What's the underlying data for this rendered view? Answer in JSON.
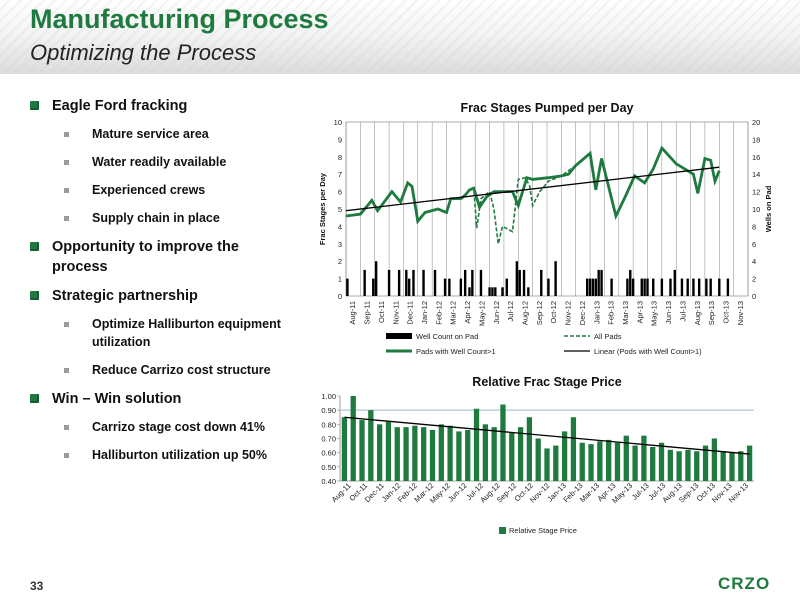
{
  "header": {
    "title": "Manufacturing Process",
    "subtitle": "Optimizing the Process"
  },
  "bullets": [
    {
      "text": "Eagle Ford fracking",
      "subs": [
        "Mature service area",
        "Water readily available",
        "Experienced crews",
        "Supply chain in place"
      ]
    },
    {
      "text": "Opportunity to improve the process",
      "subs": []
    },
    {
      "text": "Strategic partnership",
      "subs": [
        "Optimize  Halliburton equipment utilization",
        "Reduce Carrizo cost structure"
      ]
    },
    {
      "text": "Win – Win solution",
      "subs": [
        "Carrizo stage cost down 41%",
        "Halliburton utilization up 50%"
      ]
    }
  ],
  "footer": {
    "page": "33",
    "logo": "CRZO"
  },
  "colors": {
    "green": "#1e7a3e",
    "bar_dark": "#000000",
    "bar_green": "#1e7a3e"
  },
  "chart_data": [
    {
      "type": "bar",
      "title": "Frac Stages Pumped per Day",
      "ylabel": "Frac Stages per Day",
      "y2label": "Wells on Pad",
      "ylim": [
        0,
        10
      ],
      "y2lim": [
        0,
        20
      ],
      "yticks": [
        "0",
        "1",
        "2",
        "3",
        "4",
        "5",
        "6",
        "7",
        "8",
        "9",
        "10"
      ],
      "y2ticks": [
        "0",
        "2",
        "4",
        "6",
        "8",
        "10",
        "12",
        "14",
        "16",
        "18",
        "20"
      ],
      "xticks": [
        "Aug-11",
        "Sep-11",
        "Oct-11",
        "Nov-11",
        "Dec-11",
        "Jan-12",
        "Feb-12",
        "Mar-12",
        "Apr-12",
        "May-12",
        "Jun-12",
        "Jul-12",
        "Aug-12",
        "Sep-12",
        "Oct-12",
        "Nov-12",
        "Dec-12",
        "Jan-13",
        "Feb-13",
        "Mar-13",
        "Apr-13",
        "May-13",
        "Jun-13",
        "Jul-13",
        "Aug-13",
        "Sep-13",
        "Oct-13",
        "Nov-13"
      ],
      "legend": [
        "Well Count on Pad",
        "All Pads",
        "Pads with Well Count>1",
        "Linear (Pods with Well Count>1)"
      ],
      "legend_position": "bottom",
      "well_counts": [
        [
          0.1,
          2
        ],
        [
          1.3,
          3
        ],
        [
          1.9,
          2
        ],
        [
          2.1,
          4
        ],
        [
          3.0,
          3
        ],
        [
          3.7,
          3
        ],
        [
          4.2,
          3
        ],
        [
          4.4,
          2
        ],
        [
          4.7,
          3
        ],
        [
          5.4,
          3
        ],
        [
          6.2,
          3
        ],
        [
          6.9,
          2
        ],
        [
          7.2,
          2
        ],
        [
          8.0,
          2
        ],
        [
          8.3,
          3
        ],
        [
          8.6,
          1
        ],
        [
          8.8,
          3
        ],
        [
          9.4,
          3
        ],
        [
          10.0,
          1
        ],
        [
          10.2,
          1
        ],
        [
          10.4,
          1
        ],
        [
          10.9,
          1
        ],
        [
          11.2,
          2
        ],
        [
          11.9,
          4
        ],
        [
          12.1,
          3
        ],
        [
          12.4,
          3
        ],
        [
          12.7,
          1
        ],
        [
          13.6,
          3
        ],
        [
          14.1,
          2
        ],
        [
          14.6,
          4
        ],
        [
          16.8,
          2
        ],
        [
          17.0,
          2
        ],
        [
          17.2,
          2
        ],
        [
          17.4,
          2
        ],
        [
          17.6,
          3
        ],
        [
          17.8,
          3
        ],
        [
          18.5,
          2
        ],
        [
          19.6,
          2
        ],
        [
          19.8,
          3
        ],
        [
          20.0,
          2
        ],
        [
          20.6,
          2
        ],
        [
          20.8,
          2
        ],
        [
          21.0,
          2
        ],
        [
          21.4,
          2
        ],
        [
          22.0,
          2
        ],
        [
          22.6,
          2
        ],
        [
          22.9,
          3
        ],
        [
          23.4,
          2
        ],
        [
          23.8,
          2
        ],
        [
          24.2,
          2
        ],
        [
          24.6,
          2
        ],
        [
          25.1,
          2
        ],
        [
          25.4,
          2
        ],
        [
          26.0,
          2
        ],
        [
          26.6,
          2
        ]
      ],
      "all_pads": [
        [
          0.0,
          4.6
        ],
        [
          1.0,
          4.7
        ],
        [
          1.8,
          5.5
        ],
        [
          2.2,
          4.9
        ],
        [
          3.2,
          6.0
        ],
        [
          3.8,
          5.4
        ],
        [
          4.3,
          6.5
        ],
        [
          4.6,
          6.3
        ],
        [
          5.0,
          4.3
        ],
        [
          5.5,
          4.8
        ],
        [
          6.4,
          5.0
        ],
        [
          7.0,
          4.8
        ],
        [
          7.3,
          5.6
        ],
        [
          8.0,
          5.6
        ],
        [
          8.3,
          5.8
        ],
        [
          8.6,
          6.1
        ],
        [
          8.9,
          6.2
        ],
        [
          9.1,
          3.9
        ],
        [
          9.4,
          5.6
        ],
        [
          10.0,
          6.0
        ],
        [
          10.3,
          5.0
        ],
        [
          10.6,
          3.0
        ],
        [
          10.9,
          4.0
        ],
        [
          11.6,
          3.7
        ],
        [
          12.0,
          6.7
        ],
        [
          12.5,
          6.8
        ],
        [
          12.8,
          6.3
        ],
        [
          13.0,
          5.2
        ],
        [
          13.5,
          6.0
        ],
        [
          14.1,
          6.6
        ],
        [
          15.0,
          6.9
        ],
        [
          16.0,
          7.5
        ],
        [
          17.0,
          8.2
        ],
        [
          17.4,
          6.1
        ],
        [
          17.8,
          7.9
        ],
        [
          18.8,
          4.6
        ],
        [
          19.5,
          5.8
        ],
        [
          20.1,
          6.9
        ],
        [
          20.8,
          6.5
        ],
        [
          21.4,
          7.3
        ],
        [
          22.0,
          8.5
        ],
        [
          23.0,
          7.6
        ],
        [
          24.2,
          7.0
        ],
        [
          24.5,
          5.9
        ],
        [
          25.0,
          7.9
        ],
        [
          25.4,
          7.8
        ],
        [
          25.7,
          6.6
        ],
        [
          26.0,
          7.2
        ]
      ],
      "multi_pads": [
        [
          0.0,
          4.6
        ],
        [
          1.0,
          4.7
        ],
        [
          1.8,
          5.5
        ],
        [
          2.2,
          4.9
        ],
        [
          3.2,
          6.0
        ],
        [
          3.8,
          5.4
        ],
        [
          4.3,
          6.5
        ],
        [
          4.6,
          6.3
        ],
        [
          5.0,
          4.3
        ],
        [
          5.5,
          4.8
        ],
        [
          6.4,
          5.0
        ],
        [
          7.0,
          4.8
        ],
        [
          7.3,
          5.6
        ],
        [
          8.0,
          5.6
        ],
        [
          8.3,
          5.8
        ],
        [
          8.6,
          6.1
        ],
        [
          8.9,
          6.2
        ],
        [
          9.3,
          5.1
        ],
        [
          9.8,
          5.7
        ],
        [
          10.3,
          6.0
        ],
        [
          11.3,
          6.0
        ],
        [
          11.6,
          6.0
        ],
        [
          12.0,
          5.2
        ],
        [
          12.3,
          6.0
        ],
        [
          12.6,
          6.8
        ],
        [
          13.0,
          6.7
        ],
        [
          14.1,
          6.8
        ],
        [
          15.0,
          6.9
        ],
        [
          15.5,
          7.0
        ],
        [
          16.0,
          7.5
        ],
        [
          17.0,
          8.2
        ],
        [
          17.4,
          6.1
        ],
        [
          17.8,
          7.9
        ],
        [
          18.8,
          4.6
        ],
        [
          19.5,
          5.8
        ],
        [
          20.1,
          6.9
        ],
        [
          20.8,
          6.5
        ],
        [
          21.4,
          7.3
        ],
        [
          22.0,
          8.5
        ],
        [
          23.0,
          7.6
        ],
        [
          24.2,
          7.0
        ],
        [
          24.5,
          5.9
        ],
        [
          25.0,
          7.9
        ],
        [
          25.4,
          7.8
        ],
        [
          25.7,
          6.6
        ],
        [
          26.0,
          7.2
        ]
      ],
      "trend": [
        [
          0.0,
          4.9
        ],
        [
          26.0,
          7.4
        ]
      ]
    },
    {
      "type": "bar",
      "title": "Relative Frac Stage Price",
      "ylim": [
        0.4,
        1.0
      ],
      "yticks": [
        "0.40",
        "0.50",
        "0.60",
        "0.70",
        "0.80",
        "0.90",
        "1.00"
      ],
      "reference_line": 0.9,
      "xticks": [
        "Aug-11",
        "Oct-11",
        "Dec-11",
        "Jan-12",
        "Feb-12",
        "Mar-12",
        "May-12",
        "Jun-12",
        "Jul-12",
        "Aug-12",
        "Sep-12",
        "Oct-12",
        "Nov-12",
        "Jan-13",
        "Feb-13",
        "Mar-13",
        "Apr-13",
        "May-13",
        "Jul-13",
        "Jul-13",
        "Aug-13",
        "Sep-13",
        "Oct-13",
        "Nov-13",
        "Nov-13"
      ],
      "legend": [
        "Relative Stage Price"
      ],
      "legend_position": "bottom",
      "values": [
        0.85,
        1.0,
        0.83,
        0.9,
        0.8,
        0.82,
        0.78,
        0.78,
        0.79,
        0.78,
        0.76,
        0.8,
        0.79,
        0.75,
        0.76,
        0.91,
        0.8,
        0.78,
        0.94,
        0.74,
        0.78,
        0.85,
        0.7,
        0.63,
        0.65,
        0.75,
        0.85,
        0.67,
        0.66,
        0.68,
        0.69,
        0.67,
        0.72,
        0.65,
        0.72,
        0.64,
        0.67,
        0.62,
        0.61,
        0.62,
        0.61,
        0.65,
        0.7,
        0.61,
        0.6,
        0.61,
        0.65
      ],
      "trend": [
        0.85,
        0.59
      ]
    }
  ]
}
